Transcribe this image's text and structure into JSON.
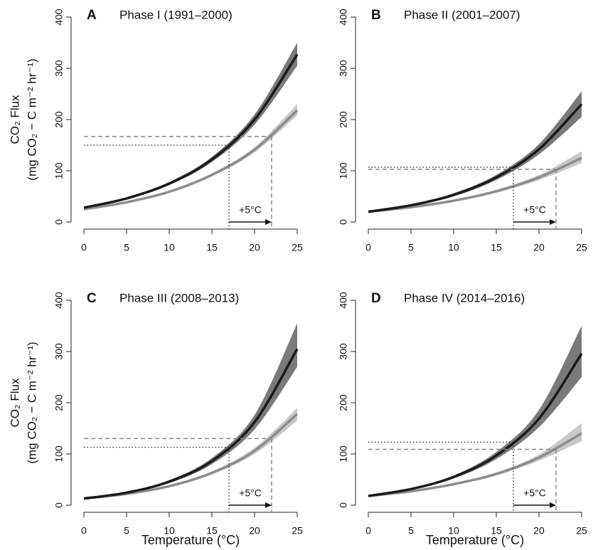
{
  "chart_data": [
    {
      "type": "line",
      "letter": "A",
      "title": "Phase I (1991–2000)",
      "ylabel": [
        "CO₂ Flux",
        "(mg CO₂ − C m⁻² hr⁻¹)"
      ],
      "x": [
        0,
        5,
        10,
        15,
        20,
        25
      ],
      "series": [
        {
          "color": "#1a1a1a",
          "band_color": "#7a7a7a",
          "values": [
            28,
            46,
            75,
            122,
            200,
            327
          ],
          "lower": [
            27,
            44,
            72,
            117,
            190,
            305
          ],
          "upper": [
            29,
            48,
            78,
            127,
            210,
            350
          ]
        },
        {
          "color": "#8c8c8c",
          "band_color": "#c8c8c8",
          "values": [
            25,
            38.5,
            59,
            92,
            141,
            218
          ],
          "lower": [
            24,
            37,
            57,
            89,
            136,
            208
          ],
          "upper": [
            26,
            40,
            61,
            95,
            146,
            230
          ]
        }
      ],
      "reference": {
        "dotted_y": 150,
        "dotted_x": 17,
        "dashed_y": 167,
        "dashed_x": 22,
        "annotation": "+5°C"
      },
      "xlim": [
        0,
        25
      ],
      "ylim": [
        0,
        400
      ],
      "xticks": [
        0,
        5,
        10,
        15,
        20,
        25
      ],
      "yticks": [
        0,
        100,
        200,
        300,
        400
      ]
    },
    {
      "type": "line",
      "letter": "B",
      "title": "Phase II (2001–2007)",
      "x": [
        0,
        5,
        10,
        15,
        20,
        25
      ],
      "series": [
        {
          "color": "#1a1a1a",
          "band_color": "#7a7a7a",
          "values": [
            20,
            32.6,
            53,
            87,
            142,
            230
          ],
          "lower": [
            19,
            31,
            50,
            82,
            132,
            205
          ],
          "upper": [
            21,
            34,
            56,
            92,
            152,
            255
          ]
        },
        {
          "color": "#8c8c8c",
          "band_color": "#c8c8c8",
          "values": [
            20,
            29,
            41.6,
            60,
            87,
            125
          ],
          "lower": [
            19,
            28,
            40,
            57,
            82,
            115
          ],
          "upper": [
            21,
            30,
            43,
            63,
            92,
            138
          ]
        }
      ],
      "reference": {
        "dotted_y": 107,
        "dotted_x": 17,
        "dashed_y": 103,
        "dashed_x": 22,
        "annotation": "+5°C"
      },
      "xlim": [
        0,
        25
      ],
      "ylim": [
        0,
        400
      ],
      "xticks": [
        0,
        5,
        10,
        15,
        20,
        25
      ],
      "yticks": [
        0,
        100,
        200,
        300,
        400
      ]
    },
    {
      "type": "line",
      "letter": "C",
      "title": "Phase III (2008–2013)",
      "ylabel": [
        "CO₂ Flux",
        "(mg CO₂ − C m⁻² hr⁻¹)"
      ],
      "xlabel": "Temperature (°C)",
      "x": [
        0,
        5,
        10,
        15,
        20,
        25
      ],
      "series": [
        {
          "color": "#1a1a1a",
          "band_color": "#7a7a7a",
          "values": [
            13,
            24.4,
            46,
            86,
            162,
            305
          ],
          "lower": [
            12,
            23,
            43,
            80,
            148,
            270
          ],
          "upper": [
            14,
            26,
            49,
            92,
            176,
            355
          ]
        },
        {
          "color": "#8c8c8c",
          "band_color": "#c8c8c8",
          "values": [
            13,
            22,
            37,
            63,
            106,
            178
          ],
          "lower": [
            12,
            21,
            35,
            60,
            100,
            165
          ],
          "upper": [
            14,
            23,
            39,
            66,
            112,
            190
          ]
        }
      ],
      "reference": {
        "dotted_y": 113,
        "dotted_x": 17,
        "dashed_y": 130,
        "dashed_x": 22,
        "annotation": "+5°C"
      },
      "xlim": [
        0,
        25
      ],
      "ylim": [
        0,
        400
      ],
      "xticks": [
        0,
        5,
        10,
        15,
        20,
        25
      ],
      "yticks": [
        0,
        100,
        200,
        300,
        400
      ]
    },
    {
      "type": "line",
      "letter": "D",
      "title": "Phase IV (2014–2016)",
      "xlabel": "Temperature (°C)",
      "x": [
        0,
        5,
        10,
        15,
        20,
        25
      ],
      "series": [
        {
          "color": "#1a1a1a",
          "band_color": "#7a7a7a",
          "values": [
            18,
            31.5,
            55,
            97,
            169,
            296
          ],
          "lower": [
            17,
            30,
            52,
            90,
            152,
            250
          ],
          "upper": [
            19,
            33,
            58,
            104,
            186,
            350
          ]
        },
        {
          "color": "#8c8c8c",
          "band_color": "#c8c8c8",
          "values": [
            18,
            27,
            41,
            61,
            93,
            140
          ],
          "lower": [
            17,
            26,
            39,
            58,
            87,
            125
          ],
          "upper": [
            19,
            28,
            43,
            64,
            99,
            160
          ]
        }
      ],
      "reference": {
        "dotted_y": 123,
        "dotted_x": 17,
        "dashed_y": 109,
        "dashed_x": 22,
        "annotation": "+5°C"
      },
      "xlim": [
        0,
        25
      ],
      "ylim": [
        0,
        400
      ],
      "xticks": [
        0,
        5,
        10,
        15,
        20,
        25
      ],
      "yticks": [
        0,
        100,
        200,
        300,
        400
      ]
    }
  ]
}
